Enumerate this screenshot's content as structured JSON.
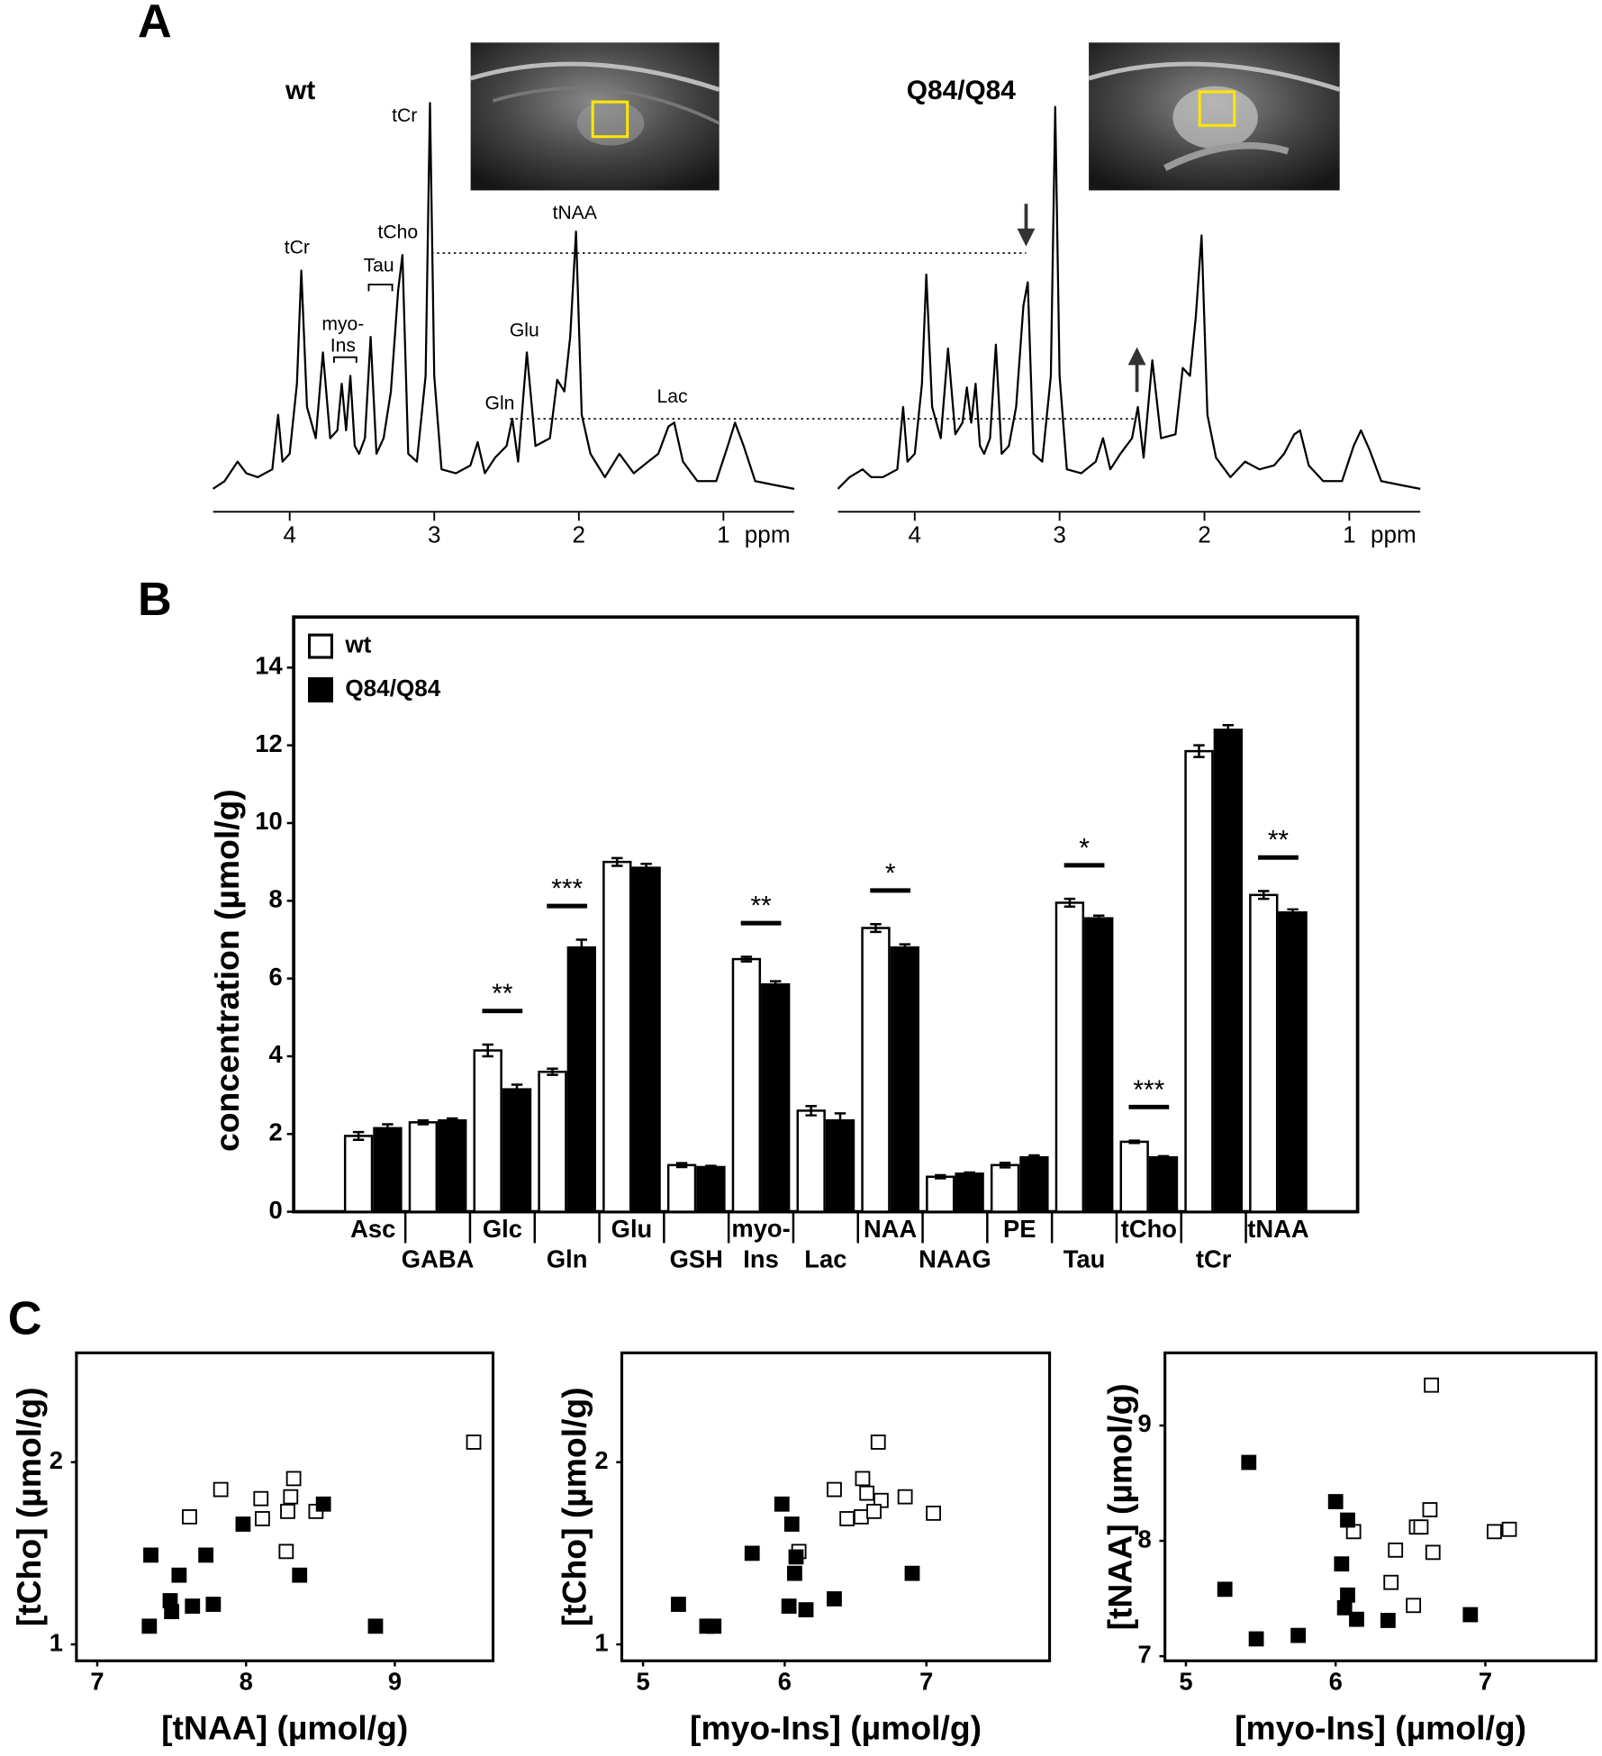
{
  "panels": [
    "A",
    "B",
    "C"
  ],
  "chart_data": [
    {
      "type": "line",
      "title": "wt",
      "xlabel": "ppm",
      "color": "#000000",
      "xlim": [
        4.53,
        0.51
      ],
      "xticks": [
        4,
        3,
        2,
        1
      ],
      "annotations": [
        "tCr",
        "myo-\nIns",
        "Tau",
        "tCho",
        "tCr",
        "Glu",
        "Gln",
        "tNAA",
        "Lac"
      ],
      "x": [
        4.53,
        4.45,
        4.36,
        4.3,
        4.22,
        4.12,
        4.08,
        4.05,
        4.0,
        3.95,
        3.92,
        3.88,
        3.82,
        3.77,
        3.72,
        3.67,
        3.64,
        3.61,
        3.58,
        3.55,
        3.52,
        3.48,
        3.44,
        3.4,
        3.35,
        3.3,
        3.25,
        3.22,
        3.18,
        3.12,
        3.06,
        3.03,
        3.0,
        2.95,
        2.85,
        2.75,
        2.7,
        2.65,
        2.58,
        2.5,
        2.46,
        2.42,
        2.36,
        2.3,
        2.2,
        2.15,
        2.1,
        2.06,
        2.02,
        1.98,
        1.92,
        1.82,
        1.72,
        1.62,
        1.52,
        1.45,
        1.38,
        1.34,
        1.28,
        1.18,
        1.05,
        0.97,
        0.92,
        0.86,
        0.78,
        0.65,
        0.51
      ],
      "values": [
        1,
        3,
        8,
        5,
        4,
        6,
        20,
        8,
        10,
        28,
        57,
        22,
        14,
        36,
        14,
        16,
        28,
        16,
        30,
        12,
        10,
        14,
        40,
        10,
        14,
        26,
        52,
        61,
        10,
        8,
        30,
        100,
        30,
        6,
        5,
        7,
        13,
        5,
        9,
        12,
        19,
        8,
        36,
        12,
        14,
        29,
        26,
        40,
        67,
        20,
        10,
        4,
        10,
        5,
        8,
        10,
        17,
        18,
        8,
        3,
        3,
        12,
        18,
        12,
        3,
        2,
        1
      ]
    },
    {
      "type": "line",
      "title": "Q84/Q84",
      "xlabel": "ppm",
      "color": "#000000",
      "xlim": [
        4.53,
        0.51
      ],
      "xticks": [
        4,
        3,
        2,
        1
      ],
      "x": [
        4.53,
        4.45,
        4.36,
        4.3,
        4.22,
        4.12,
        4.08,
        4.05,
        4.0,
        3.95,
        3.92,
        3.88,
        3.82,
        3.77,
        3.72,
        3.67,
        3.64,
        3.61,
        3.58,
        3.55,
        3.52,
        3.48,
        3.44,
        3.4,
        3.35,
        3.3,
        3.25,
        3.22,
        3.18,
        3.12,
        3.06,
        3.03,
        3.0,
        2.95,
        2.85,
        2.75,
        2.7,
        2.65,
        2.58,
        2.5,
        2.46,
        2.42,
        2.36,
        2.3,
        2.2,
        2.15,
        2.1,
        2.06,
        2.02,
        1.98,
        1.92,
        1.82,
        1.72,
        1.62,
        1.52,
        1.45,
        1.38,
        1.34,
        1.28,
        1.18,
        1.05,
        0.97,
        0.92,
        0.86,
        0.78,
        0.65,
        0.51
      ],
      "values": [
        1,
        4,
        6,
        4,
        4,
        6,
        22,
        8,
        10,
        28,
        56,
        22,
        14,
        37,
        15,
        18,
        27,
        18,
        28,
        12,
        10,
        14,
        38,
        10,
        12,
        22,
        48,
        54,
        10,
        8,
        30,
        99,
        30,
        6,
        5,
        8,
        14,
        6,
        10,
        14,
        22,
        9,
        34,
        14,
        15,
        32,
        30,
        45,
        66,
        20,
        9,
        4,
        8,
        6,
        7,
        10,
        15,
        16,
        7,
        3,
        3,
        12,
        16,
        11,
        3,
        2,
        1
      ]
    },
    {
      "type": "bar",
      "ylabel": "concentration (µmol/g)",
      "legend": "top-left",
      "ylim": [
        0,
        15.3
      ],
      "yticks": [
        0,
        2,
        4,
        6,
        8,
        10,
        12,
        14
      ],
      "categories": [
        "Asc",
        "GABA",
        "Glc",
        "Gln",
        "Glu",
        "GSH",
        "myo-\nIns",
        "Lac",
        "NAA",
        "NAAG",
        "PE",
        "Tau",
        "tCho",
        "tCr",
        "tNAA"
      ],
      "series": [
        {
          "name": "wt",
          "color": "#ffffff",
          "values": [
            1.95,
            2.3,
            4.15,
            3.6,
            9.0,
            1.2,
            6.5,
            2.6,
            7.3,
            0.9,
            1.2,
            7.95,
            1.8,
            11.85,
            8.15
          ],
          "errors": [
            0.1,
            0.05,
            0.15,
            0.08,
            0.1,
            0.05,
            0.06,
            0.12,
            0.1,
            0.04,
            0.06,
            0.1,
            0.03,
            0.15,
            0.1
          ]
        },
        {
          "name": "Q84/Q84",
          "color": "#000000",
          "values": [
            2.15,
            2.35,
            3.15,
            6.8,
            8.85,
            1.15,
            5.85,
            2.35,
            6.8,
            0.98,
            1.4,
            7.55,
            1.4,
            12.4,
            7.7
          ],
          "errors": [
            0.1,
            0.05,
            0.12,
            0.2,
            0.1,
            0.03,
            0.08,
            0.18,
            0.08,
            0.03,
            0.05,
            0.07,
            0.03,
            0.12,
            0.08
          ]
        }
      ],
      "significance": [
        null,
        null,
        "**",
        "***",
        null,
        null,
        "**",
        null,
        "*",
        null,
        null,
        "*",
        "***",
        null,
        "**"
      ]
    },
    {
      "type": "scatter",
      "xlabel": "[tNAA] (µmol/g)",
      "ylabel": "[tCho] (µmol/g)",
      "xlim": [
        6.86,
        9.66
      ],
      "xticks": [
        7,
        8,
        9
      ],
      "ylim": [
        0.91,
        2.6
      ],
      "yticks": [
        1,
        2
      ],
      "series": [
        {
          "color": "#000000",
          "filled": false,
          "x": [
            9.53,
            7.83,
            8.1,
            8.3,
            8.32,
            7.62,
            8.11,
            8.28,
            8.47,
            8.27
          ],
          "values": [
            2.11,
            1.85,
            1.8,
            1.81,
            1.91,
            1.7,
            1.69,
            1.73,
            1.73,
            1.51
          ]
        },
        {
          "color": "#000000",
          "filled": true,
          "x": [
            8.52,
            7.98,
            7.36,
            7.73,
            7.55,
            8.36,
            7.49,
            7.5,
            7.64,
            7.78,
            7.35,
            8.87
          ],
          "values": [
            1.77,
            1.66,
            1.49,
            1.49,
            1.38,
            1.38,
            1.24,
            1.18,
            1.21,
            1.22,
            1.1,
            1.1
          ]
        }
      ]
    },
    {
      "type": "scatter",
      "xlabel": "[myo-Ins] (µmol/g)",
      "ylabel": "[tCho] (µmol/g)",
      "xlim": [
        4.85,
        7.87
      ],
      "xticks": [
        5,
        6,
        7
      ],
      "ylim": [
        0.91,
        2.6
      ],
      "yticks": [
        1,
        2
      ],
      "series": [
        {
          "color": "#000000",
          "filled": false,
          "x": [
            6.66,
            6.35,
            6.55,
            6.58,
            6.68,
            6.85,
            7.05,
            6.44,
            6.54,
            6.63,
            6.1
          ],
          "values": [
            2.11,
            1.85,
            1.91,
            1.83,
            1.79,
            1.81,
            1.72,
            1.69,
            1.7,
            1.73,
            1.51
          ]
        },
        {
          "color": "#000000",
          "filled": true,
          "x": [
            5.98,
            6.05,
            5.77,
            6.07,
            6.9,
            5.25,
            6.03,
            6.15,
            6.35,
            5.45,
            5.5,
            6.08
          ],
          "values": [
            1.77,
            1.66,
            1.5,
            1.39,
            1.39,
            1.22,
            1.21,
            1.19,
            1.25,
            1.1,
            1.1,
            1.48
          ]
        }
      ]
    },
    {
      "type": "scatter",
      "xlabel": "[myo-Ins] (µmol/g)",
      "ylabel": "[tNAA] (µmol/g)",
      "xlim": [
        4.86,
        7.74
      ],
      "xticks": [
        5,
        6,
        7
      ],
      "ylim": [
        6.96,
        9.63
      ],
      "yticks": [
        7,
        8,
        9
      ],
      "series": [
        {
          "color": "#000000",
          "filled": false,
          "x": [
            6.64,
            6.63,
            6.54,
            6.57,
            6.12,
            6.4,
            6.65,
            7.06,
            7.16,
            6.37,
            6.52
          ],
          "values": [
            9.35,
            8.27,
            8.12,
            8.12,
            8.08,
            7.92,
            7.9,
            8.08,
            8.1,
            7.64,
            7.44
          ]
        },
        {
          "color": "#000000",
          "filled": true,
          "x": [
            5.42,
            6.0,
            6.08,
            6.04,
            6.08,
            6.06,
            6.14,
            6.35,
            6.9,
            5.26,
            5.47,
            5.75
          ],
          "values": [
            8.68,
            8.34,
            8.18,
            7.8,
            7.53,
            7.42,
            7.32,
            7.31,
            7.36,
            7.58,
            7.15,
            7.18
          ]
        }
      ]
    }
  ]
}
